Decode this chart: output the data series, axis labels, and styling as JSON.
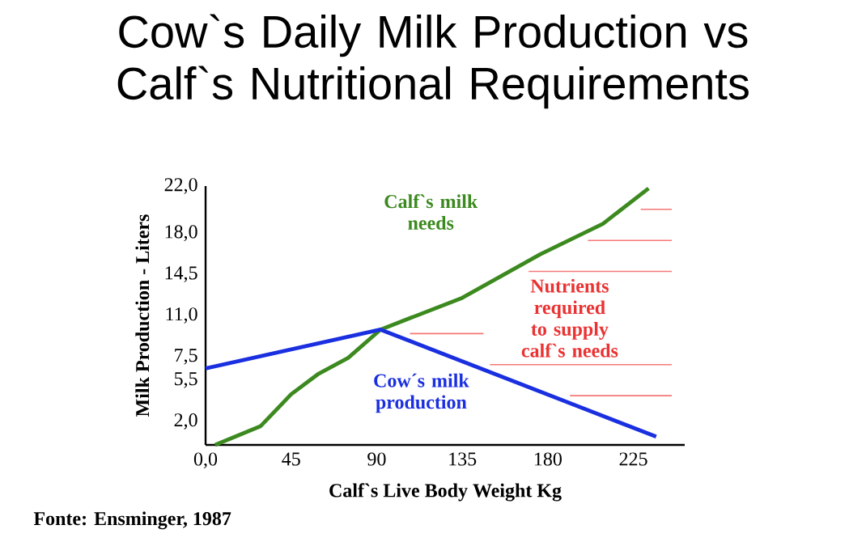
{
  "chart_data": {
    "type": "line",
    "title": "Cow`s Daily Milk Production vs Calf`s Nutritional Requirements",
    "xlabel": "Calf`s Live Body Weight Kg",
    "ylabel": "Milk Production - Liters",
    "xlim": [
      0,
      252
    ],
    "xticks": [
      {
        "value": 0,
        "label": "0,0"
      },
      45,
      90,
      135,
      180,
      225
    ],
    "ylim": [
      0,
      22
    ],
    "yticks": [
      {
        "value": 2,
        "label": "2,0"
      },
      {
        "value": 5.5,
        "label": "5,5"
      },
      {
        "value": 7.5,
        "label": "7,5"
      },
      {
        "value": 11,
        "label": "11,0"
      },
      {
        "value": 14.5,
        "label": "14,5"
      },
      {
        "value": 18,
        "label": "18,0"
      },
      {
        "value": 22,
        "label": "22,0"
      }
    ],
    "series": [
      {
        "name": "Calf`s milk needs",
        "color": "#3c8a1f",
        "x": [
          5,
          29,
          45,
          59,
          75,
          92,
          135,
          176,
          209,
          233
        ],
        "values": [
          0,
          1.6,
          4.3,
          6.0,
          7.4,
          9.8,
          12.5,
          16.2,
          18.8,
          21.8
        ]
      },
      {
        "name": "Cow´s milk production",
        "color": "#1a2fe0",
        "x": [
          0,
          92,
          237
        ],
        "values": [
          6.5,
          9.8,
          0.7
        ]
      }
    ],
    "annotations": [
      "Nutrients required to supply calf`s needs",
      "Fonte: Ensminger, 1987"
    ],
    "legend": false,
    "marker": "none",
    "line_style": "solid"
  }
}
